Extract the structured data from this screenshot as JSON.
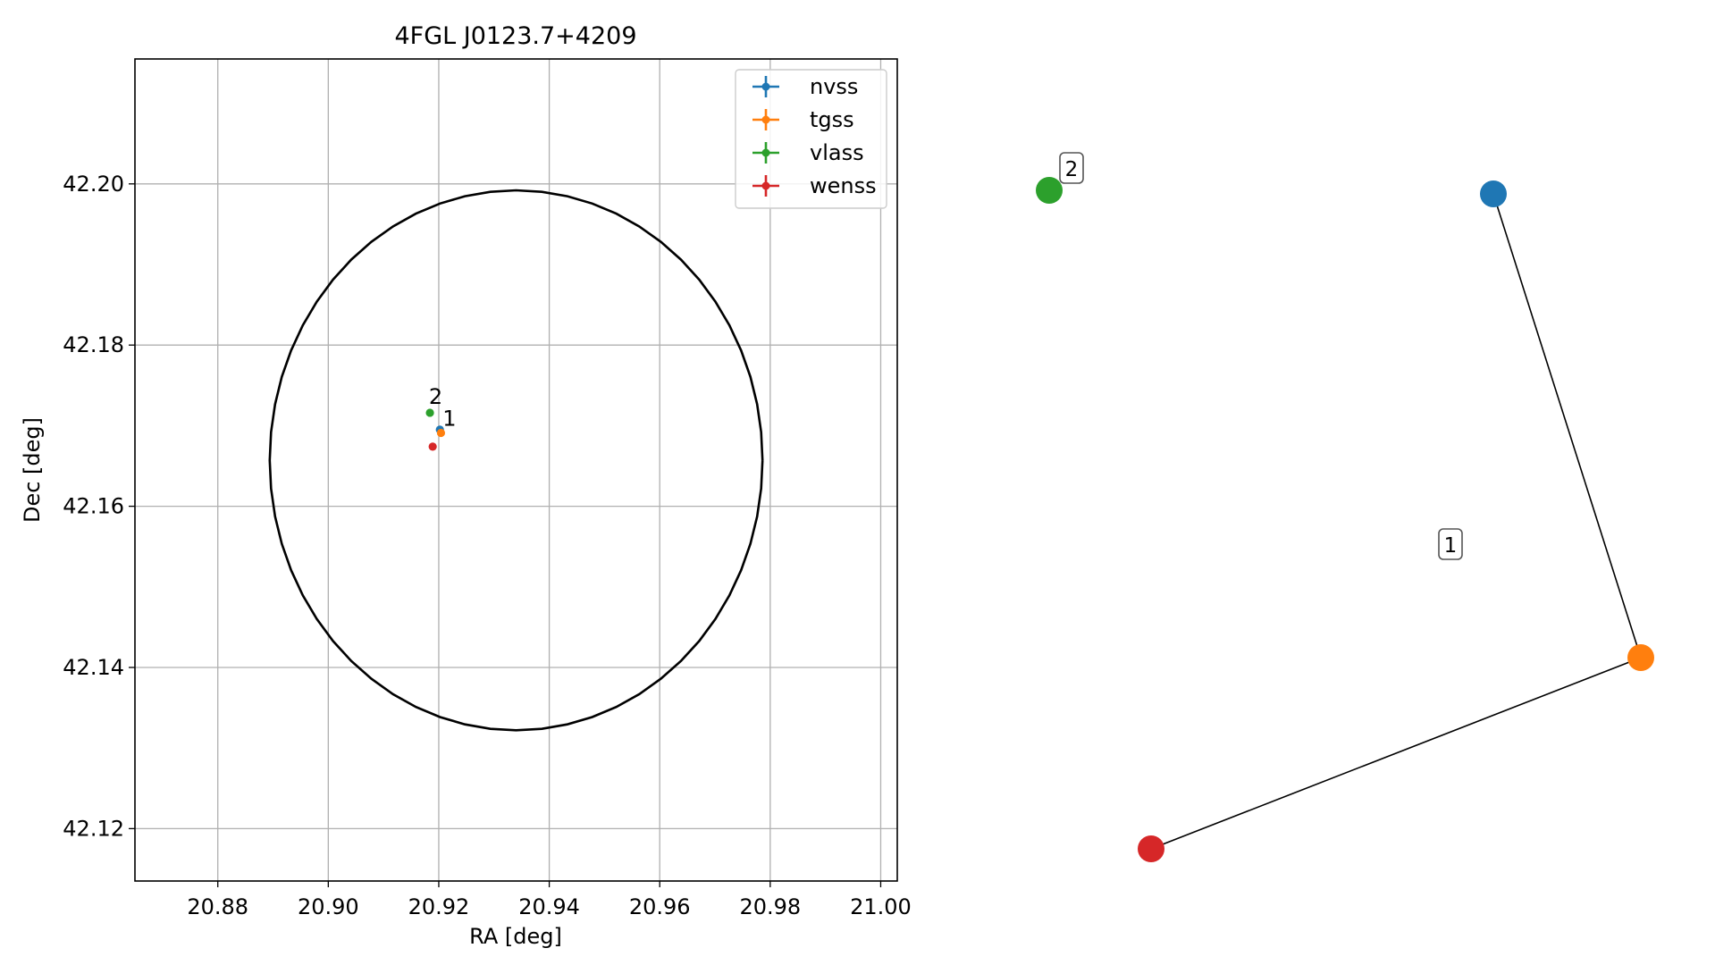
{
  "chart_data": [
    {
      "type": "scatter",
      "title": "4FGL J0123.7+4209",
      "xlabel": "RA [deg]",
      "ylabel": "Dec [deg]",
      "xlim": [
        20.865,
        21.003
      ],
      "ylim": [
        42.1135,
        42.2155
      ],
      "xticks": [
        20.88,
        20.9,
        20.92,
        20.94,
        20.96,
        20.98,
        21.0
      ],
      "xtick_labels": [
        "20.88",
        "20.90",
        "20.92",
        "20.94",
        "20.96",
        "20.98",
        "21.00"
      ],
      "yticks": [
        42.12,
        42.14,
        42.16,
        42.18,
        42.2
      ],
      "ytick_labels": [
        "42.12",
        "42.14",
        "42.16",
        "42.18",
        "42.20"
      ],
      "grid": true,
      "legend_position": "top-right",
      "series": [
        {
          "name": "nvss",
          "color": "#1f77b4",
          "points": [
            {
              "x": 20.9202,
              "y": 42.1695
            }
          ]
        },
        {
          "name": "tgss",
          "color": "#ff7f0e",
          "points": [
            {
              "x": 20.9204,
              "y": 42.1691
            }
          ]
        },
        {
          "name": "vlass",
          "color": "#2ca02c",
          "points": [
            {
              "x": 20.9184,
              "y": 42.1716
            }
          ]
        },
        {
          "name": "wenss",
          "color": "#d62728",
          "points": [
            {
              "x": 20.9189,
              "y": 42.1674
            }
          ]
        }
      ],
      "ellipse": {
        "center_x": 20.934,
        "center_y": 42.1657,
        "semi_axis_ra": 0.0446,
        "semi_axis_dec": 0.0335,
        "color": "#000000"
      },
      "annotations": [
        {
          "text": "2",
          "x": 20.9182,
          "y": 42.1727
        },
        {
          "text": "1",
          "x": 20.9207,
          "y": 42.17
        }
      ]
    },
    {
      "type": "graph",
      "nodes": [
        {
          "id": "nvss",
          "color": "#1f77b4"
        },
        {
          "id": "tgss",
          "color": "#ff7f0e"
        },
        {
          "id": "vlass",
          "color": "#2ca02c"
        },
        {
          "id": "wenss",
          "color": "#d62728"
        }
      ],
      "edges": [
        {
          "source": "nvss",
          "target": "tgss"
        },
        {
          "source": "tgss",
          "target": "wenss"
        }
      ],
      "component_labels": [
        {
          "text": "1"
        },
        {
          "text": "2"
        }
      ]
    }
  ]
}
